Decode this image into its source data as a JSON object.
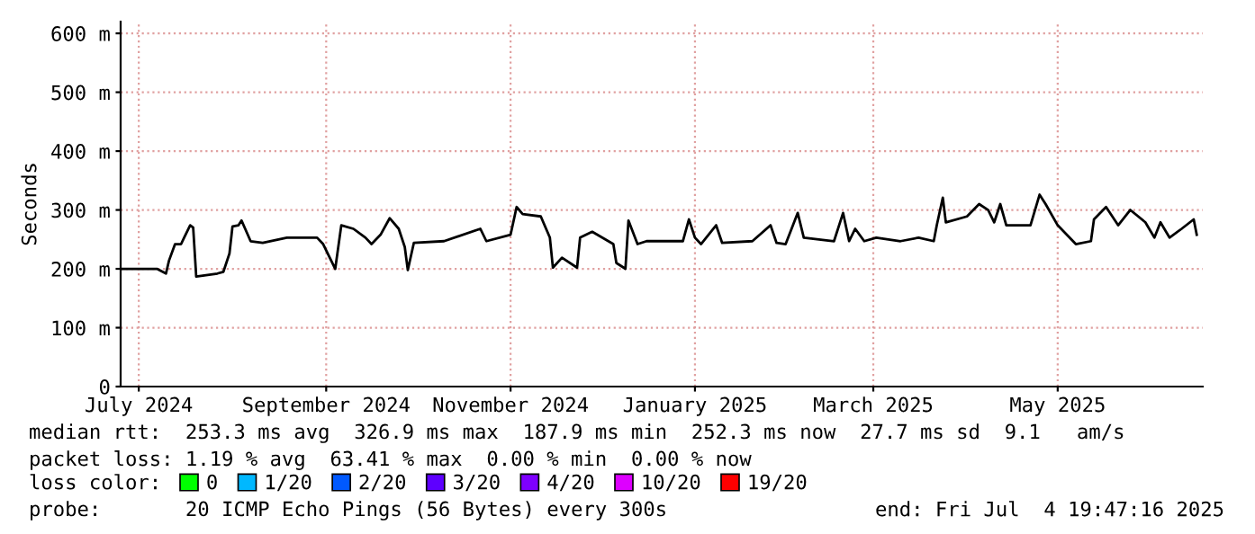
{
  "chart_data": {
    "type": "line",
    "ylabel": "Seconds",
    "legend_title": "loss color:",
    "legend": "bottom",
    "grid": true,
    "line_style": "solid",
    "xlim": [
      "2024-06-25",
      "2025-06-18"
    ],
    "ylim": [
      0,
      620
    ],
    "xticks": [
      {
        "value": "2024-07-01",
        "label": "July 2024"
      },
      {
        "value": "2024-09-01",
        "label": "September 2024"
      },
      {
        "value": "2024-11-01",
        "label": "November 2024"
      },
      {
        "value": "2025-01-01",
        "label": "January 2025"
      },
      {
        "value": "2025-03-01",
        "label": "March 2025"
      },
      {
        "value": "2025-05-01",
        "label": "May 2025"
      }
    ],
    "yticks": [
      0,
      {
        "value": 100,
        "label": "100 m"
      },
      {
        "value": 200,
        "label": "200 m"
      },
      {
        "value": 300,
        "label": "300 m"
      },
      {
        "value": 400,
        "label": "400 m"
      },
      {
        "value": 500,
        "label": "500 m"
      },
      {
        "value": 600,
        "label": "600 m"
      }
    ],
    "annotations": [
      "median rtt:  253.3 ms avg  326.9 ms max  187.9 ms min  252.3 ms now  27.7 ms sd  9.1   am/s",
      "packet loss: 1.19 % avg  63.41 % max  0.00 % min  0.00 % now",
      "probe:       20 ICMP Echo Pings (56 Bytes) every 300s",
      "end: Fri Jul  4 19:47:16 2025"
    ],
    "series": [
      {
        "color": "#000000",
        "x": [
          "2024-06-25",
          "2024-07-07",
          "2024-07-10",
          "2024-07-11",
          "2024-07-13",
          "2024-07-15",
          "2024-07-16",
          "2024-07-18",
          "2024-07-19",
          "2024-07-20",
          "2024-07-27",
          "2024-07-29",
          "2024-07-31",
          "2024-08-01",
          "2024-08-03",
          "2024-08-04",
          "2024-08-07",
          "2024-08-11",
          "2024-08-19",
          "2024-08-29",
          "2024-08-31",
          "2024-09-02",
          "2024-09-04",
          "2024-09-06",
          "2024-09-10",
          "2024-09-14",
          "2024-09-16",
          "2024-09-19",
          "2024-09-22",
          "2024-09-25",
          "2024-09-27",
          "2024-09-28",
          "2024-09-30",
          "2024-10-10",
          "2024-10-22",
          "2024-10-24",
          "2024-11-01",
          "2024-11-03",
          "2024-11-05",
          "2024-11-11",
          "2024-11-14",
          "2024-11-15",
          "2024-11-18",
          "2024-11-23",
          "2024-11-24",
          "2024-11-28",
          "2024-12-05",
          "2024-12-06",
          "2024-12-09",
          "2024-12-10",
          "2024-12-13",
          "2024-12-16",
          "2024-12-28",
          "2024-12-30",
          "2025-01-01",
          "2025-01-03",
          "2025-01-08",
          "2025-01-10",
          "2025-01-20",
          "2025-01-26",
          "2025-01-28",
          "2025-01-31",
          "2025-02-04",
          "2025-02-06",
          "2025-02-16",
          "2025-02-19",
          "2025-02-21",
          "2025-02-23",
          "2025-02-26",
          "2025-03-02",
          "2025-03-10",
          "2025-03-16",
          "2025-03-21",
          "2025-03-22",
          "2025-03-24",
          "2025-03-25",
          "2025-04-01",
          "2025-04-05",
          "2025-04-08",
          "2025-04-10",
          "2025-04-12",
          "2025-04-14",
          "2025-04-22",
          "2025-04-25",
          "2025-04-27",
          "2025-05-01",
          "2025-05-04",
          "2025-05-07",
          "2025-05-12",
          "2025-05-13",
          "2025-05-17",
          "2025-05-21",
          "2025-05-25",
          "2025-05-30",
          "2025-06-02",
          "2025-06-04",
          "2025-06-07",
          "2025-06-11",
          "2025-06-15",
          "2025-06-16"
        ],
        "values": [
          200,
          200,
          192,
          214,
          242,
          242,
          253,
          274,
          270,
          187,
          192,
          195,
          226,
          272,
          274,
          282,
          247,
          244,
          253,
          253,
          242,
          221,
          200,
          274,
          268,
          253,
          242,
          258,
          286,
          268,
          237,
          198,
          244,
          247,
          268,
          247,
          258,
          305,
          293,
          289,
          253,
          202,
          219,
          202,
          253,
          263,
          242,
          210,
          200,
          282,
          242,
          247,
          247,
          284,
          253,
          242,
          274,
          244,
          247,
          274,
          244,
          242,
          295,
          253,
          247,
          295,
          247,
          268,
          247,
          253,
          247,
          253,
          247,
          274,
          321,
          279,
          289,
          310,
          300,
          279,
          310,
          274,
          274,
          326,
          310,
          274,
          258,
          242,
          247,
          284,
          305,
          274,
          300,
          279,
          253,
          279,
          253,
          268,
          284,
          258
        ]
      },
      {
        "name": "0",
        "color": "#00ff00"
      },
      {
        "name": "1/20",
        "color": "#00b8ff"
      },
      {
        "name": "2/20",
        "color": "#0059ff"
      },
      {
        "name": "3/20",
        "color": "#5e00ff"
      },
      {
        "name": "4/20",
        "color": "#7e00ff"
      },
      {
        "name": "10/20",
        "color": "#dd00ff"
      },
      {
        "name": "19/20",
        "color": "#ff0000"
      }
    ]
  }
}
